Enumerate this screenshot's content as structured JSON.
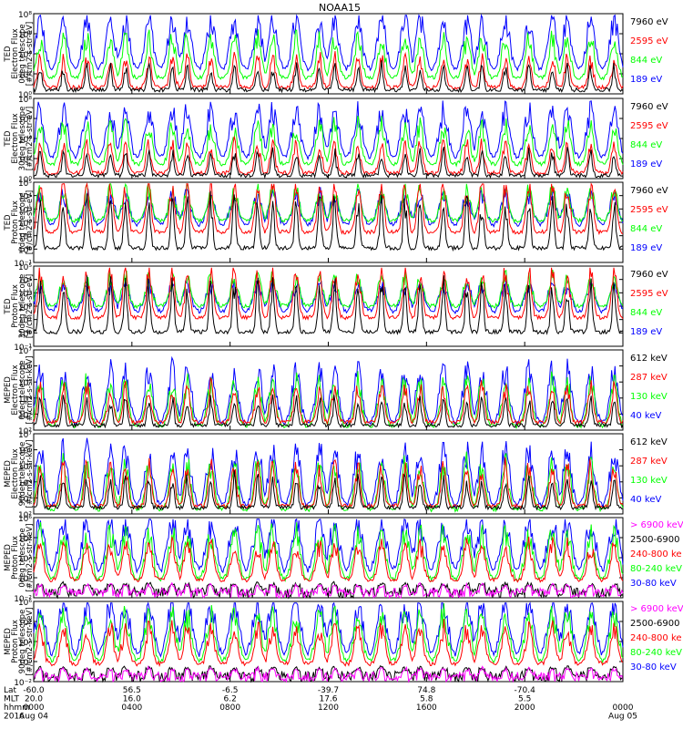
{
  "title": "NOAA15",
  "colors": {
    "black": "#000000",
    "red": "#ff0000",
    "green": "#00ff00",
    "blue": "#0000ff",
    "magenta": "#ff00ff"
  },
  "chart_data": [
    {
      "type": "line",
      "ylabel": [
        "TED",
        "Electron Flux",
        "0deg telescope",
        "[#/cm2-s-str-eV]"
      ],
      "yscale": "log",
      "ylim": [
        1,
        100000000
      ],
      "yticks": [
        "10⁰",
        "10²",
        "10⁴",
        "10⁶",
        "10⁸"
      ],
      "series": [
        {
          "name": "7960 eV",
          "color": "black"
        },
        {
          "name": "2595 eV",
          "color": "red"
        },
        {
          "name": "844 eV",
          "color": "green"
        },
        {
          "name": "189 eV",
          "color": "blue"
        }
      ]
    },
    {
      "type": "line",
      "ylabel": [
        "TED",
        "Electron Flux",
        "30deg telescope",
        "[#/cm2-s-str-eV]"
      ],
      "yscale": "log",
      "ylim": [
        1,
        100000000
      ],
      "yticks": [
        "10⁰",
        "10²",
        "10⁴",
        "10⁶",
        "10⁸"
      ],
      "series": [
        {
          "name": "7960 eV",
          "color": "black"
        },
        {
          "name": "2595 eV",
          "color": "red"
        },
        {
          "name": "844 eV",
          "color": "green"
        },
        {
          "name": "189 eV",
          "color": "blue"
        }
      ]
    },
    {
      "type": "line",
      "ylabel": [
        "TED",
        "Proton Flux",
        "0deg telescope",
        "[#/cm2-s-str-eV]"
      ],
      "yscale": "log",
      "ylim": [
        0.1,
        100000
      ],
      "yticks": [
        "10⁻¹",
        "10⁰",
        "10¹",
        "10²",
        "10³",
        "10⁴",
        "10⁵"
      ],
      "series": [
        {
          "name": "7960 eV",
          "color": "black"
        },
        {
          "name": "2595 eV",
          "color": "red"
        },
        {
          "name": "844 eV",
          "color": "green"
        },
        {
          "name": "189 eV",
          "color": "blue"
        }
      ]
    },
    {
      "type": "line",
      "ylabel": [
        "TED",
        "Proton Flux",
        "30deg telescope",
        "[#/cm2-s-str-eV]"
      ],
      "yscale": "log",
      "ylim": [
        0.1,
        100000
      ],
      "yticks": [
        "10⁻¹",
        "10⁰",
        "10¹",
        "10²",
        "10³",
        "10⁴",
        "10⁵"
      ],
      "series": [
        {
          "name": "7960 eV",
          "color": "black"
        },
        {
          "name": "2595 eV",
          "color": "red"
        },
        {
          "name": "844 eV",
          "color": "green"
        },
        {
          "name": "189 eV",
          "color": "blue"
        }
      ]
    },
    {
      "type": "line",
      "ylabel": [
        "MEPED",
        "Electron Flux",
        "0deg telescope",
        "[#/cm2-s-str-keV]"
      ],
      "yscale": "log",
      "ylim": [
        100,
        10000000
      ],
      "yticks": [
        "10²",
        "10³",
        "10⁴",
        "10⁵",
        "10⁶",
        "10⁷"
      ],
      "series": [
        {
          "name": "612 keV",
          "color": "black"
        },
        {
          "name": "287 keV",
          "color": "red"
        },
        {
          "name": "130 keV",
          "color": "green"
        },
        {
          "name": "40 keV",
          "color": "blue"
        }
      ]
    },
    {
      "type": "line",
      "ylabel": [
        "MEPED",
        "Electron Flux",
        "90deg telescope",
        "[#/cm2-s-str-keV]"
      ],
      "yscale": "log",
      "ylim": [
        100,
        10000000
      ],
      "yticks": [
        "10²",
        "10³",
        "10⁴",
        "10⁵",
        "10⁶",
        "10⁷"
      ],
      "series": [
        {
          "name": "612 keV",
          "color": "black"
        },
        {
          "name": "287 keV",
          "color": "red"
        },
        {
          "name": "130 keV",
          "color": "green"
        },
        {
          "name": "40 keV",
          "color": "blue"
        }
      ]
    },
    {
      "type": "line",
      "ylabel": [
        "MEPED",
        "Proton Flux",
        "0deg telescope",
        "[#/cm2-s-str-keV]"
      ],
      "yscale": "log",
      "ylim": [
        0.01,
        1000000
      ],
      "yticks": [
        "10⁻²",
        "10⁰",
        "10²",
        "10⁴",
        "10⁶"
      ],
      "series": [
        {
          "name": "> 6900 keV",
          "color": "magenta"
        },
        {
          "name": "2500-6900",
          "color": "black"
        },
        {
          "name": "240-800 ke",
          "color": "red"
        },
        {
          "name": "80-240 keV",
          "color": "green"
        },
        {
          "name": "30-80 keV",
          "color": "blue"
        }
      ]
    },
    {
      "type": "line",
      "ylabel": [
        "MEPED",
        "Proton Flux",
        "90deg telescope",
        "[#/cm2-s-str-keV]"
      ],
      "yscale": "log",
      "ylim": [
        0.01,
        1000000
      ],
      "yticks": [
        "10⁻²",
        "10⁰",
        "10²",
        "10⁴",
        "10⁶"
      ],
      "series": [
        {
          "name": "> 6900 keV",
          "color": "magenta"
        },
        {
          "name": "2500-6900",
          "color": "black"
        },
        {
          "name": "240-800 ke",
          "color": "red"
        },
        {
          "name": "80-240 keV",
          "color": "green"
        },
        {
          "name": "30-80 keV",
          "color": "blue"
        }
      ]
    }
  ],
  "xaxis": {
    "row_labels": [
      "Lat",
      "MLT",
      "hhmm",
      "2016"
    ],
    "ticks": [
      {
        "lat": "-60.0",
        "mlt": "20.0",
        "hhmm": "0000",
        "date": "Aug 04"
      },
      {
        "lat": "56.5",
        "mlt": "16.0",
        "hhmm": "0400",
        "date": ""
      },
      {
        "lat": "-6.5",
        "mlt": "6.2",
        "hhmm": "0800",
        "date": ""
      },
      {
        "lat": "-39.7",
        "mlt": "17.6",
        "hhmm": "1200",
        "date": ""
      },
      {
        "lat": "74.8",
        "mlt": "5.8",
        "hhmm": "1600",
        "date": ""
      },
      {
        "lat": "-70.4",
        "mlt": "5.5",
        "hhmm": "2000",
        "date": ""
      },
      {
        "lat": "",
        "mlt": "",
        "hhmm": "0000",
        "date": "Aug 05"
      }
    ]
  }
}
